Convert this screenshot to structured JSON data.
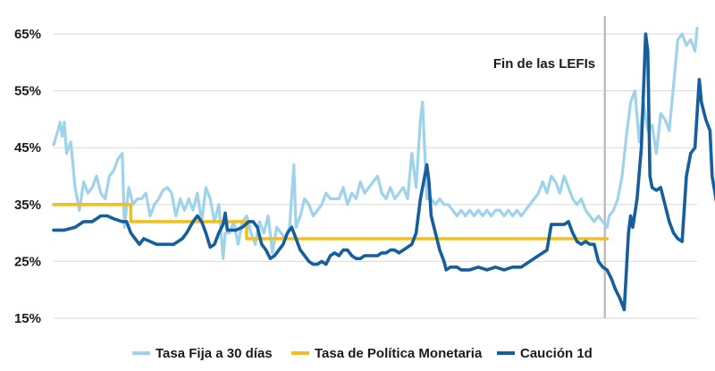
{
  "chart_data": {
    "type": "line",
    "title": "",
    "xlabel": "",
    "ylabel": "",
    "y_unit": "%",
    "ylim": [
      15,
      65
    ],
    "yticks": [
      15,
      25,
      35,
      45,
      55,
      65
    ],
    "ytick_labels": [
      "15%",
      "25%",
      "35%",
      "45%",
      "55%",
      "65%"
    ],
    "grid": "horizontal",
    "legend": "bottom",
    "x_range": [
      0,
      300
    ],
    "annotation": {
      "text": "Fin de las LEFIs",
      "x": 257
    },
    "series": [
      {
        "name": "Tasa Fija a 30 días",
        "color": "#9fd3ec",
        "points": [
          [
            0,
            45.5
          ],
          [
            2,
            48
          ],
          [
            3,
            49.5
          ],
          [
            4,
            47
          ],
          [
            5,
            49.5
          ],
          [
            6,
            44
          ],
          [
            8,
            46
          ],
          [
            10,
            38
          ],
          [
            12,
            34
          ],
          [
            14,
            39
          ],
          [
            16,
            37
          ],
          [
            18,
            38
          ],
          [
            20,
            40
          ],
          [
            22,
            37
          ],
          [
            24,
            36
          ],
          [
            26,
            40
          ],
          [
            28,
            41
          ],
          [
            30,
            43
          ],
          [
            32,
            44
          ],
          [
            33,
            31
          ],
          [
            35,
            38
          ],
          [
            37,
            35
          ],
          [
            39,
            36
          ],
          [
            41,
            36
          ],
          [
            43,
            37
          ],
          [
            45,
            33
          ],
          [
            47,
            35
          ],
          [
            49,
            36
          ],
          [
            51,
            37.5
          ],
          [
            53,
            38
          ],
          [
            55,
            37
          ],
          [
            57,
            33
          ],
          [
            59,
            36
          ],
          [
            61,
            34
          ],
          [
            63,
            36
          ],
          [
            65,
            34
          ],
          [
            67,
            37
          ],
          [
            69,
            32
          ],
          [
            71,
            38
          ],
          [
            73,
            36
          ],
          [
            75,
            32
          ],
          [
            77,
            35
          ],
          [
            79,
            25.5
          ],
          [
            80,
            30
          ],
          [
            82,
            30
          ],
          [
            84,
            32
          ],
          [
            86,
            28
          ],
          [
            88,
            32
          ],
          [
            90,
            33
          ],
          [
            92,
            30
          ],
          [
            94,
            28
          ],
          [
            96,
            32
          ],
          [
            98,
            30
          ],
          [
            100,
            33
          ],
          [
            102,
            26.5
          ],
          [
            104,
            31
          ],
          [
            106,
            30
          ],
          [
            108,
            29
          ],
          [
            110,
            31
          ],
          [
            112,
            42
          ],
          [
            113,
            31
          ],
          [
            115,
            33
          ],
          [
            117,
            36
          ],
          [
            119,
            35
          ],
          [
            121,
            33
          ],
          [
            123,
            34
          ],
          [
            125,
            35
          ],
          [
            127,
            37
          ],
          [
            129,
            36
          ],
          [
            131,
            36
          ],
          [
            133,
            36
          ],
          [
            135,
            38
          ],
          [
            137,
            35
          ],
          [
            139,
            37
          ],
          [
            141,
            36
          ],
          [
            143,
            39
          ],
          [
            145,
            37
          ],
          [
            147,
            38
          ],
          [
            149,
            39
          ],
          [
            151,
            40
          ],
          [
            153,
            37
          ],
          [
            155,
            36
          ],
          [
            157,
            38
          ],
          [
            159,
            36
          ],
          [
            161,
            37
          ],
          [
            163,
            38
          ],
          [
            165,
            36
          ],
          [
            167,
            44
          ],
          [
            169,
            38
          ],
          [
            171,
            50
          ],
          [
            172,
            53
          ],
          [
            174,
            36
          ],
          [
            176,
            36
          ],
          [
            178,
            35
          ],
          [
            180,
            36
          ],
          [
            182,
            35
          ],
          [
            184,
            35
          ],
          [
            186,
            34
          ],
          [
            188,
            33
          ],
          [
            190,
            34
          ],
          [
            192,
            33
          ],
          [
            194,
            34
          ],
          [
            196,
            33
          ],
          [
            198,
            34
          ],
          [
            200,
            33
          ],
          [
            202,
            34
          ],
          [
            204,
            33
          ],
          [
            206,
            34
          ],
          [
            208,
            34
          ],
          [
            210,
            33
          ],
          [
            212,
            34
          ],
          [
            214,
            33
          ],
          [
            216,
            34
          ],
          [
            218,
            33
          ],
          [
            220,
            34
          ],
          [
            222,
            35
          ],
          [
            224,
            36
          ],
          [
            226,
            37
          ],
          [
            228,
            39
          ],
          [
            230,
            37
          ],
          [
            232,
            40
          ],
          [
            234,
            39
          ],
          [
            236,
            37
          ],
          [
            238,
            40
          ],
          [
            240,
            38
          ],
          [
            242,
            36
          ],
          [
            244,
            35
          ],
          [
            246,
            36
          ],
          [
            248,
            34
          ],
          [
            250,
            33
          ],
          [
            252,
            32
          ],
          [
            254,
            33
          ],
          [
            256,
            32
          ],
          [
            258,
            31
          ],
          [
            259,
            33
          ],
          [
            261,
            34
          ],
          [
            263,
            36
          ],
          [
            265,
            40
          ],
          [
            267,
            47
          ],
          [
            269,
            53
          ],
          [
            271,
            55
          ],
          [
            273,
            46
          ],
          [
            275,
            53
          ],
          [
            277,
            48
          ],
          [
            279,
            49
          ],
          [
            281,
            44
          ],
          [
            283,
            51
          ],
          [
            285,
            50
          ],
          [
            287,
            48
          ],
          [
            289,
            56
          ],
          [
            291,
            64
          ],
          [
            293,
            65
          ],
          [
            295,
            63
          ],
          [
            297,
            64
          ],
          [
            299,
            62
          ],
          [
            300,
            66
          ]
        ]
      },
      {
        "name": "Tasa de Política Monetaria",
        "color": "#f2c01e",
        "points": [
          [
            0,
            35
          ],
          [
            36,
            35
          ],
          [
            36,
            32
          ],
          [
            90,
            32
          ],
          [
            90,
            29
          ],
          [
            258,
            29
          ]
        ]
      },
      {
        "name": "Caución 1d",
        "color": "#165f9c",
        "points": [
          [
            0,
            30.5
          ],
          [
            5,
            30.5
          ],
          [
            10,
            31
          ],
          [
            14,
            32
          ],
          [
            18,
            32
          ],
          [
            22,
            33
          ],
          [
            25,
            33
          ],
          [
            28,
            32.5
          ],
          [
            32,
            32
          ],
          [
            34,
            32
          ],
          [
            36,
            30
          ],
          [
            38,
            29
          ],
          [
            40,
            28
          ],
          [
            42,
            29
          ],
          [
            45,
            28.5
          ],
          [
            48,
            28
          ],
          [
            52,
            28
          ],
          [
            56,
            28
          ],
          [
            60,
            29
          ],
          [
            62,
            30
          ],
          [
            65,
            32
          ],
          [
            67,
            33
          ],
          [
            69,
            32
          ],
          [
            71,
            30
          ],
          [
            73,
            27.5
          ],
          [
            75,
            28
          ],
          [
            77,
            30
          ],
          [
            79,
            31.5
          ],
          [
            80,
            33.5
          ],
          [
            81,
            30.5
          ],
          [
            85,
            30.5
          ],
          [
            88,
            31
          ],
          [
            91,
            32
          ],
          [
            93,
            32
          ],
          [
            95,
            31
          ],
          [
            97,
            28
          ],
          [
            99,
            27
          ],
          [
            101,
            25.5
          ],
          [
            103,
            26
          ],
          [
            105,
            27
          ],
          [
            107,
            28
          ],
          [
            109,
            30
          ],
          [
            111,
            31
          ],
          [
            113,
            29
          ],
          [
            115,
            27
          ],
          [
            117,
            26
          ],
          [
            119,
            25
          ],
          [
            121,
            24.5
          ],
          [
            123,
            24.5
          ],
          [
            125,
            25
          ],
          [
            127,
            24.5
          ],
          [
            129,
            26
          ],
          [
            131,
            26.5
          ],
          [
            133,
            26
          ],
          [
            135,
            27
          ],
          [
            137,
            27
          ],
          [
            139,
            26
          ],
          [
            141,
            25.5
          ],
          [
            143,
            25.5
          ],
          [
            145,
            26
          ],
          [
            148,
            26
          ],
          [
            151,
            26
          ],
          [
            153,
            26.5
          ],
          [
            155,
            26.5
          ],
          [
            157,
            27
          ],
          [
            159,
            27
          ],
          [
            161,
            26.5
          ],
          [
            163,
            27
          ],
          [
            165,
            27.5
          ],
          [
            167,
            28
          ],
          [
            169,
            30
          ],
          [
            171,
            36
          ],
          [
            173,
            40
          ],
          [
            174,
            42
          ],
          [
            175,
            39
          ],
          [
            176,
            33
          ],
          [
            178,
            30
          ],
          [
            180,
            27
          ],
          [
            182,
            25
          ],
          [
            183,
            23.5
          ],
          [
            185,
            24
          ],
          [
            188,
            24
          ],
          [
            190,
            23.5
          ],
          [
            194,
            23.5
          ],
          [
            198,
            24
          ],
          [
            202,
            23.5
          ],
          [
            206,
            24
          ],
          [
            210,
            23.5
          ],
          [
            214,
            24
          ],
          [
            218,
            24
          ],
          [
            220,
            24.5
          ],
          [
            222,
            25
          ],
          [
            224,
            25.5
          ],
          [
            226,
            26
          ],
          [
            228,
            26.5
          ],
          [
            230,
            27
          ],
          [
            232,
            31.5
          ],
          [
            234,
            31.5
          ],
          [
            236,
            31.5
          ],
          [
            238,
            31.5
          ],
          [
            240,
            32
          ],
          [
            242,
            30
          ],
          [
            244,
            28.5
          ],
          [
            246,
            28
          ],
          [
            248,
            28.5
          ],
          [
            250,
            28
          ],
          [
            252,
            28
          ],
          [
            254,
            25
          ],
          [
            256,
            24
          ],
          [
            258,
            23.5
          ],
          [
            260,
            22
          ],
          [
            262,
            20
          ],
          [
            264,
            18.5
          ],
          [
            266,
            16.5
          ],
          [
            268,
            30
          ],
          [
            269,
            33
          ],
          [
            270,
            31
          ],
          [
            272,
            36
          ],
          [
            274,
            45
          ],
          [
            275,
            55
          ],
          [
            276,
            65
          ],
          [
            277,
            62
          ],
          [
            278,
            40
          ],
          [
            279,
            38
          ],
          [
            281,
            37.5
          ],
          [
            283,
            38
          ],
          [
            285,
            35
          ],
          [
            287,
            32
          ],
          [
            289,
            30
          ],
          [
            291,
            29
          ],
          [
            293,
            28.5
          ],
          [
            295,
            40
          ],
          [
            297,
            44
          ],
          [
            299,
            45
          ],
          [
            301,
            57
          ],
          [
            302,
            53
          ],
          [
            304,
            50
          ],
          [
            306,
            48
          ],
          [
            307,
            40
          ],
          [
            309,
            35.5
          ]
        ]
      }
    ]
  }
}
